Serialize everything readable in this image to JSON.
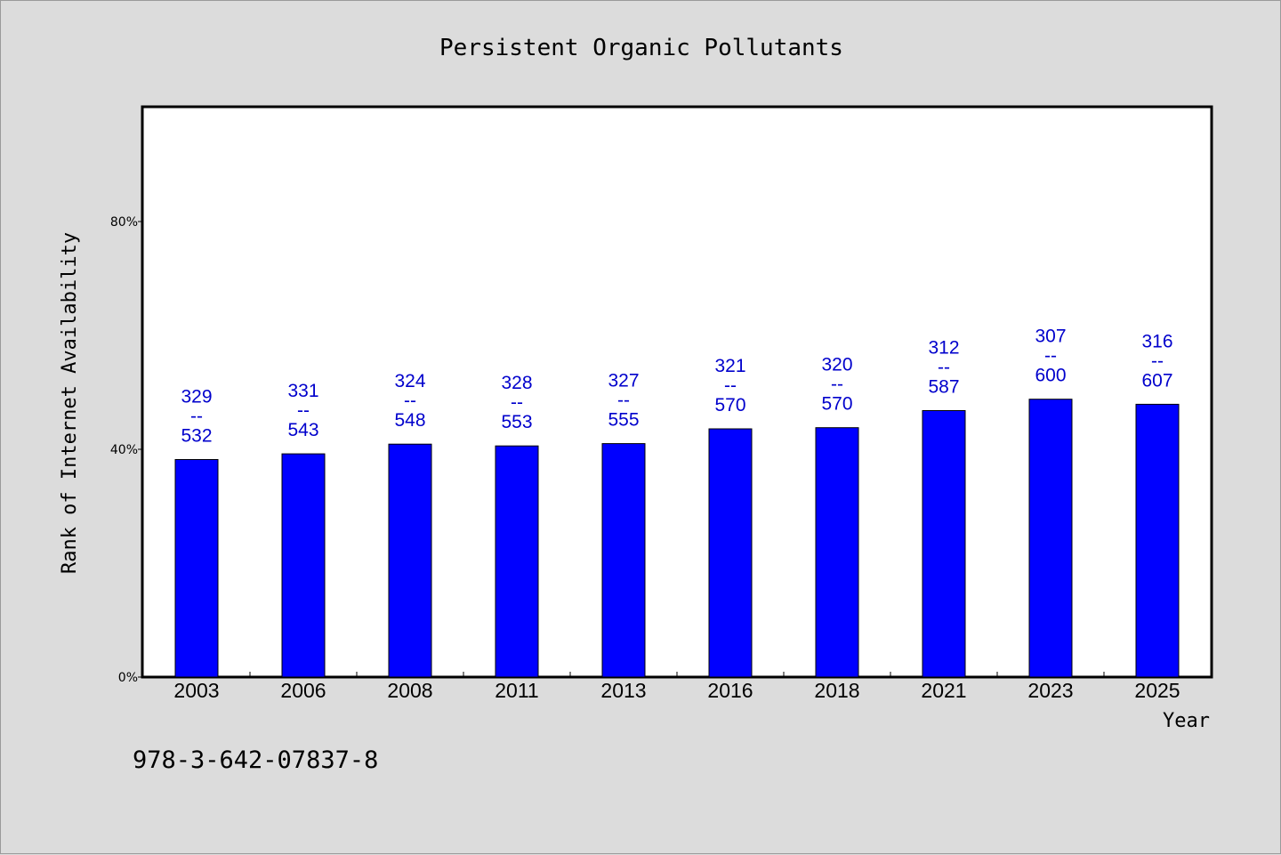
{
  "chart_data": {
    "type": "bar",
    "title": "Persistent Organic Pollutants",
    "xlabel": "Year",
    "ylabel": "Rank of Internet Availability",
    "categories": [
      "2003",
      "2006",
      "2008",
      "2011",
      "2013",
      "2016",
      "2018",
      "2021",
      "2023",
      "2025"
    ],
    "values": [
      38.2,
      39.2,
      40.9,
      40.6,
      41.0,
      43.6,
      43.8,
      46.8,
      48.8,
      47.9
    ],
    "data_labels": [
      {
        "top": "329",
        "sep": "--",
        "bottom": "532"
      },
      {
        "top": "331",
        "sep": "--",
        "bottom": "543"
      },
      {
        "top": "324",
        "sep": "--",
        "bottom": "548"
      },
      {
        "top": "328",
        "sep": "--",
        "bottom": "553"
      },
      {
        "top": "327",
        "sep": "--",
        "bottom": "555"
      },
      {
        "top": "321",
        "sep": "--",
        "bottom": "570"
      },
      {
        "top": "320",
        "sep": "--",
        "bottom": "570"
      },
      {
        "top": "312",
        "sep": "--",
        "bottom": "587"
      },
      {
        "top": "307",
        "sep": "--",
        "bottom": "600"
      },
      {
        "top": "316",
        "sep": "--",
        "bottom": "607"
      }
    ],
    "ylim": [
      0,
      100
    ],
    "yticks": [
      0,
      40,
      80
    ],
    "ytick_labels": [
      "0%",
      "40%",
      "80%"
    ],
    "grid": false,
    "bar_color": "#0000ff",
    "label_color": "#0000cc",
    "background": "#dcdcdc",
    "plot_background": "#ffffff"
  },
  "footer_text": "978-3-642-07837-8"
}
